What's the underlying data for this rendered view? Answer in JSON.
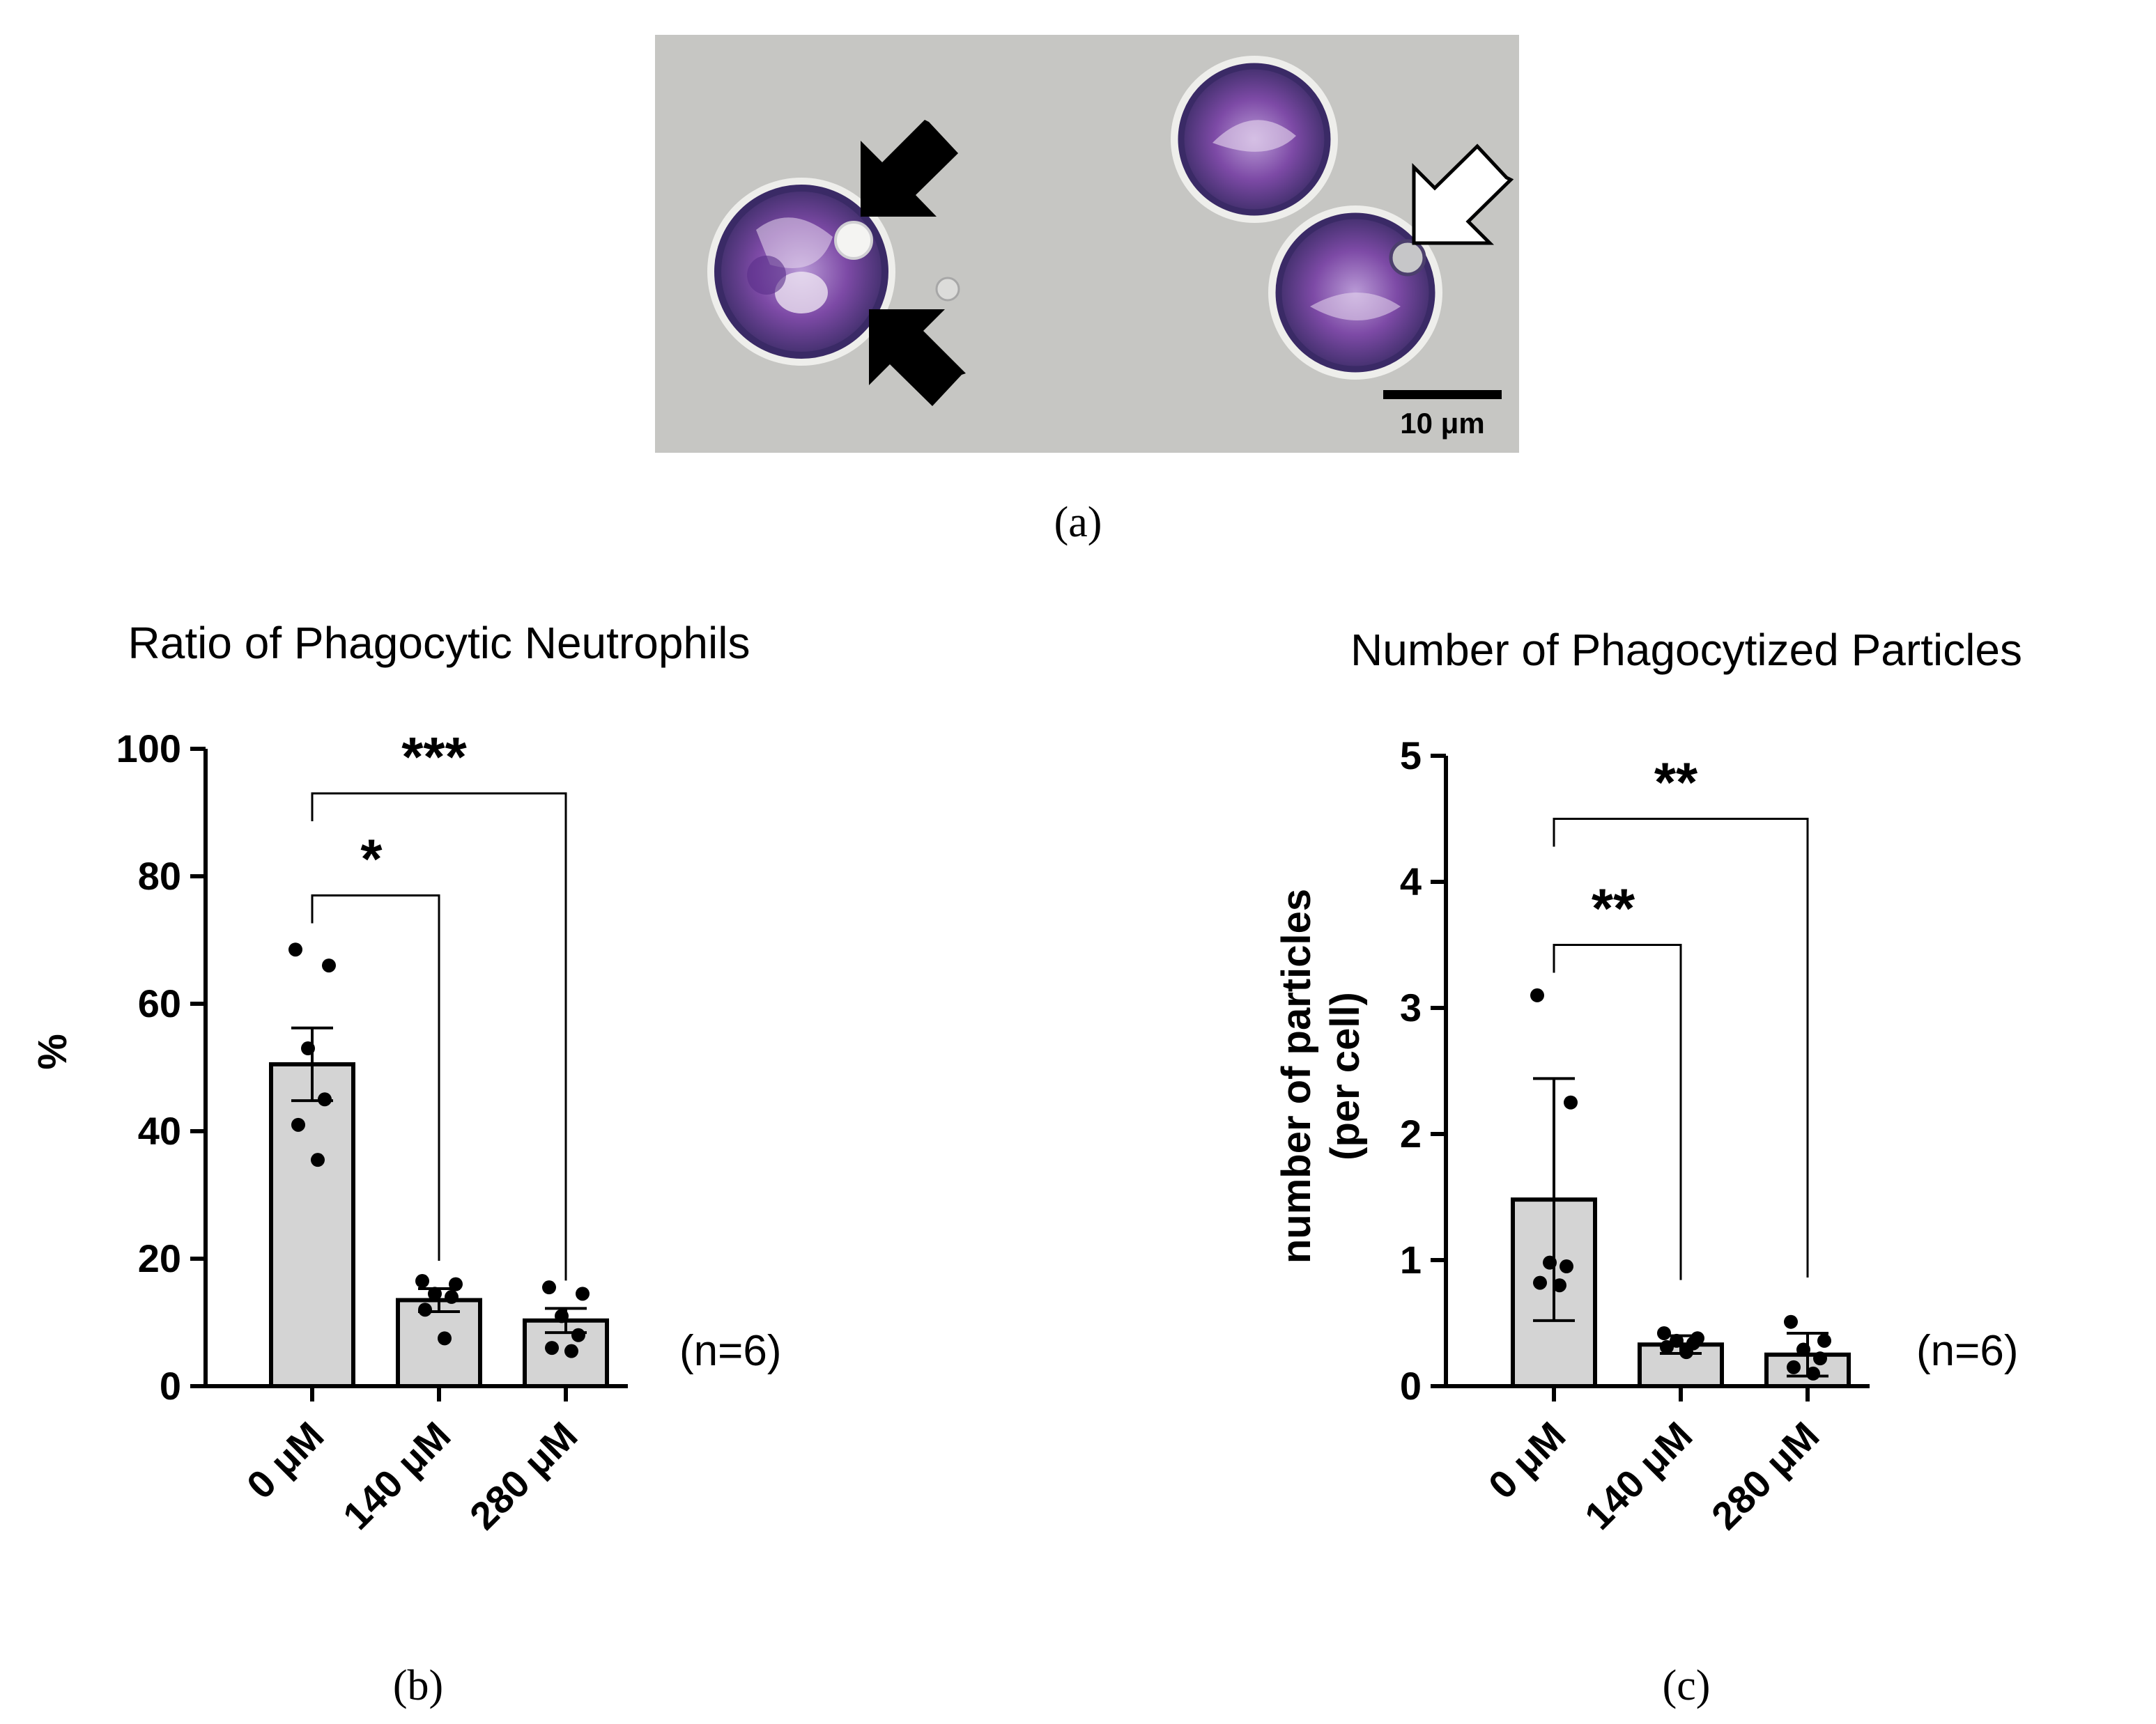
{
  "panel_a": {
    "label": "(a)",
    "scale_bar_label": "10 μm",
    "colors": {
      "background": "#c9cac7",
      "cell_membrane": "#43306e",
      "cytoplasm": "#7d4aa6",
      "arrow_dark": "#000000",
      "arrow_light": "#ffffff"
    }
  },
  "chart_data": [
    {
      "type": "bar",
      "panel_label": "(b)",
      "title": "Ratio of Phagocytic Neutrophils",
      "ylabel": "%",
      "xlabel": "",
      "categories": [
        "0 μM",
        "140 μM",
        "280 μM"
      ],
      "values": [
        50.5,
        13.5,
        10.3
      ],
      "error": [
        5.7,
        1.8,
        1.9
      ],
      "points": [
        [
          68.5,
          66,
          53,
          45,
          41,
          35.5
        ],
        [
          16.5,
          16,
          14.5,
          14,
          12,
          7.5
        ],
        [
          15.5,
          14.5,
          11,
          8,
          6,
          5.5
        ]
      ],
      "ylim": [
        0,
        100
      ],
      "yticks": [
        0,
        20,
        40,
        60,
        80,
        100
      ],
      "annotation": "(n=6)",
      "significance": [
        {
          "from": 0,
          "to": 1,
          "label": "*",
          "y": 77
        },
        {
          "from": 0,
          "to": 2,
          "label": "***",
          "y": 93
        }
      ],
      "grid": false,
      "bar_color": "#d4d4d4"
    },
    {
      "type": "bar",
      "panel_label": "(c)",
      "title": "Number of Phagocytized Particles",
      "ylabel": "number of particles (per cell)",
      "xlabel": "",
      "categories": [
        "0 μM",
        "140 μM",
        "280 μM"
      ],
      "values": [
        1.48,
        0.33,
        0.25
      ],
      "error": [
        0.96,
        0.07,
        0.17
      ],
      "points": [
        [
          3.1,
          2.25,
          0.98,
          0.95,
          0.82,
          0.8
        ],
        [
          0.42,
          0.38,
          0.36,
          0.34,
          0.31,
          0.27
        ],
        [
          0.51,
          0.36,
          0.29,
          0.22,
          0.15,
          0.1
        ]
      ],
      "ylim": [
        0,
        5
      ],
      "yticks": [
        0,
        1,
        2,
        3,
        4,
        5
      ],
      "annotation": "(n=6)",
      "significance": [
        {
          "from": 0,
          "to": 1,
          "label": "**",
          "y": 3.5
        },
        {
          "from": 0,
          "to": 2,
          "label": "**",
          "y": 4.5
        }
      ],
      "grid": false,
      "bar_color": "#d4d4d4"
    }
  ]
}
